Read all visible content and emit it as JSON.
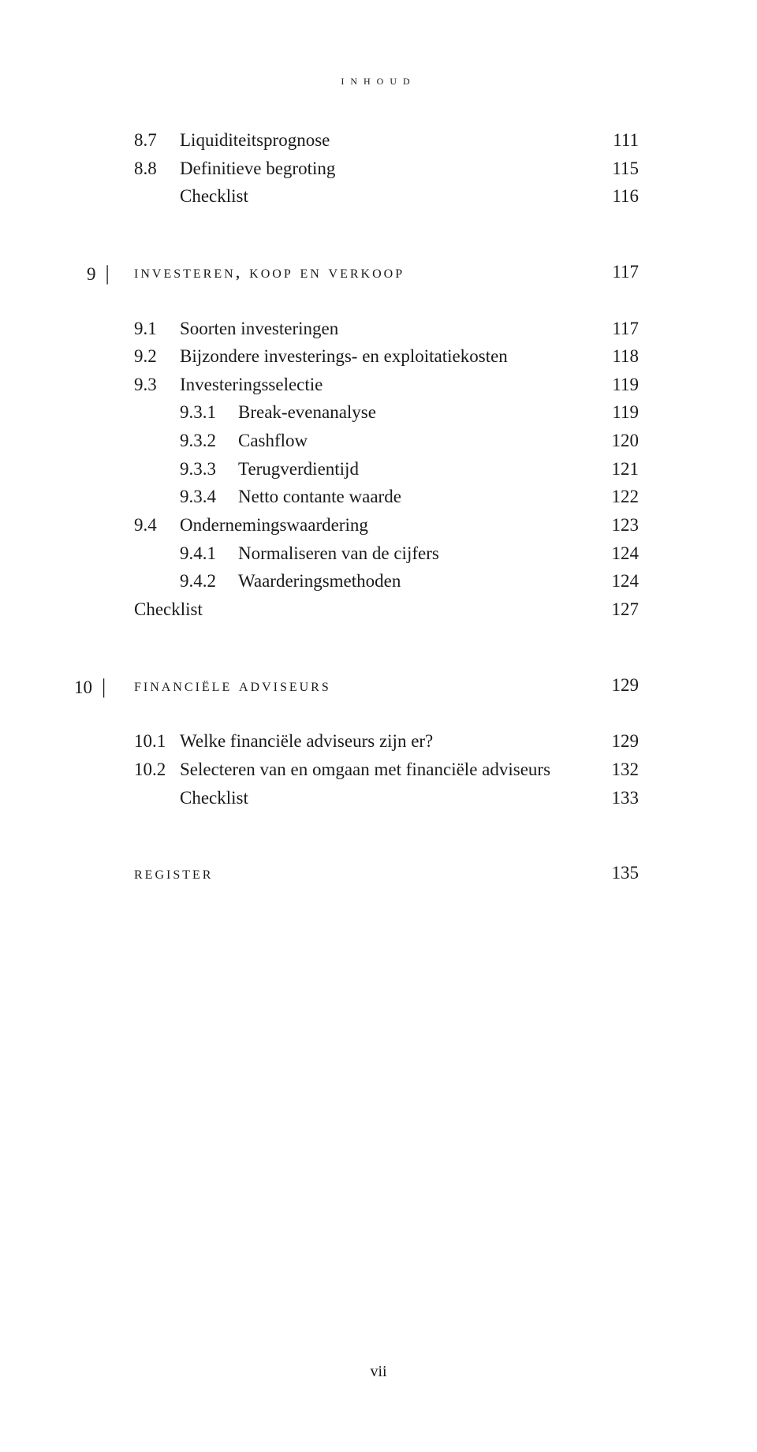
{
  "running_head": "inhoud",
  "folio": "vii",
  "block1": {
    "r1_num": "8.7",
    "r1_label": "Liquiditeitsprognose",
    "r1_page": "111",
    "r2_num": "8.8",
    "r2_label": "Definitieve begroting",
    "r2_page": "115",
    "r3_label": "Checklist",
    "r3_page": "116"
  },
  "ch9": {
    "num": "9",
    "title": "investeren, koop en verkoop",
    "page": "117",
    "r1_num": "9.1",
    "r1_label": "Soorten investeringen",
    "r1_page": "117",
    "r2_num": "9.2",
    "r2_label": "Bijzondere investerings- en exploitatiekosten",
    "r2_page": "118",
    "r3_num": "9.3",
    "r3_label": "Investeringsselectie",
    "r3_page": "119",
    "r4_num": "9.3.1",
    "r4_label": "Break-evenanalyse",
    "r4_page": "119",
    "r5_num": "9.3.2",
    "r5_label": "Cashflow",
    "r5_page": "120",
    "r6_num": "9.3.3",
    "r6_label": "Terugverdientijd",
    "r6_page": "121",
    "r7_num": "9.3.4",
    "r7_label": "Netto contante waarde",
    "r7_page": "122",
    "r8_num": "9.4",
    "r8_label": "Ondernemingswaardering",
    "r8_page": "123",
    "r9_num": "9.4.1",
    "r9_label": "Normaliseren van de cijfers",
    "r9_page": "124",
    "r10_num": "9.4.2",
    "r10_label": "Waarderingsmethoden",
    "r10_page": "124",
    "r11_label": "Checklist",
    "r11_page": "127"
  },
  "ch10": {
    "num": "10",
    "title": "financiële adviseurs",
    "page": "129",
    "r1_num": "10.1",
    "r1_label": "Welke financiële adviseurs zijn er?",
    "r1_page": "129",
    "r2_num": "10.2",
    "r2_label": "Selecteren van en omgaan met financiële adviseurs",
    "r2_page": "132",
    "r3_label": "Checklist",
    "r3_page": "133"
  },
  "register": {
    "label": "register",
    "page": "135"
  }
}
